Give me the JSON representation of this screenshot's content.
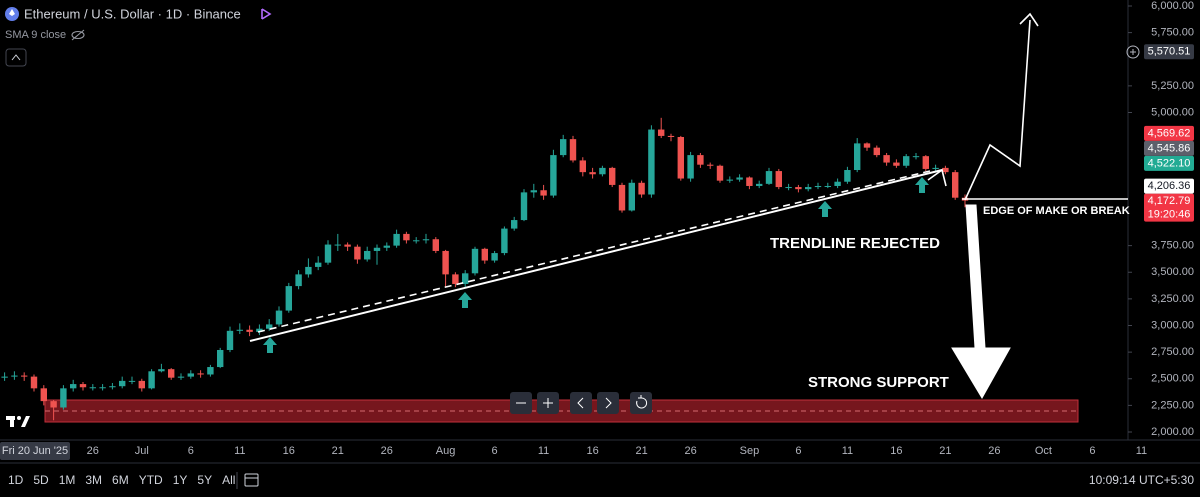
{
  "header": {
    "title": "Ethereum / U.S. Dollar · 1D · Binance",
    "indicator": "SMA 9 close"
  },
  "chart_data": {
    "type": "candlestick",
    "categories": [
      null,
      null,
      null,
      "Fri 20 Jun '25",
      null,
      null,
      null,
      null,
      null,
      "26",
      null,
      null,
      null,
      null,
      "Jul",
      null,
      null,
      null,
      null,
      "6",
      null,
      null,
      null,
      null,
      "11",
      null,
      null,
      null,
      null,
      "16",
      null,
      null,
      null,
      null,
      "21",
      null,
      null,
      null,
      null,
      "26",
      null,
      null,
      null,
      null,
      null,
      "Aug",
      null,
      null,
      null,
      null,
      "6",
      null,
      null,
      null,
      null,
      "11",
      null,
      null,
      null,
      null,
      "16",
      null,
      null,
      null,
      null,
      "21",
      null,
      null,
      null,
      null,
      "26",
      null,
      null,
      null,
      null,
      null,
      "Sep",
      null,
      null,
      null,
      null,
      "6",
      null,
      null,
      null,
      null,
      "11",
      null,
      null,
      null,
      null,
      "16",
      null,
      null,
      null,
      null,
      "21",
      null,
      null,
      null,
      null,
      "26",
      null,
      null,
      null,
      null,
      "Oct",
      null,
      null,
      null,
      null,
      "6",
      null,
      null,
      null,
      null,
      "11"
    ],
    "open": [
      2510,
      2520,
      2530,
      2520,
      2410,
      2290,
      2230,
      2410,
      2450,
      2420,
      2420,
      2420,
      2430,
      2480,
      2480,
      2410,
      2570,
      2590,
      2510,
      2520,
      2550,
      2540,
      2610,
      2770,
      2950,
      2960,
      2940,
      2970,
      3010,
      3140,
      3370,
      3480,
      3550,
      3590,
      3760,
      3760,
      3740,
      3620,
      3700,
      3730,
      3750,
      3860,
      3800,
      3800,
      3810,
      3700,
      3480,
      3390,
      3490,
      3720,
      3610,
      3680,
      3910,
      3990,
      4250,
      4270,
      4220,
      4600,
      4750,
      4550,
      4440,
      4420,
      4480,
      4320,
      4080,
      4340,
      4230,
      4840,
      4780,
      4770,
      4380,
      4600,
      4510,
      4500,
      4360,
      4370,
      4390,
      4310,
      4330,
      4450,
      4300,
      4300,
      4280,
      4300,
      4310,
      4310,
      4350,
      4460,
      4710,
      4670,
      4600,
      4530,
      4500,
      4590,
      4590,
      4470,
      4480,
      4440,
      4200,
      null,
      null,
      null,
      null,
      null,
      null,
      null,
      null,
      null,
      null,
      null,
      null,
      null,
      null,
      null,
      null,
      null,
      null
    ],
    "high": [
      2560,
      2570,
      2560,
      2540,
      2440,
      2300,
      2440,
      2490,
      2470,
      2450,
      2450,
      2460,
      2520,
      2520,
      2500,
      2590,
      2640,
      2600,
      2550,
      2580,
      2580,
      2630,
      2790,
      2990,
      3020,
      3000,
      3010,
      3060,
      3180,
      3400,
      3520,
      3630,
      3650,
      3800,
      3860,
      3780,
      3760,
      3740,
      3760,
      3780,
      3900,
      3880,
      3830,
      3860,
      3830,
      3710,
      3500,
      3520,
      3740,
      3730,
      3700,
      3930,
      4020,
      4280,
      4330,
      4320,
      4650,
      4790,
      4780,
      4580,
      4480,
      4500,
      4490,
      4340,
      4370,
      4360,
      4880,
      4950,
      4800,
      4780,
      4630,
      4620,
      4530,
      4510,
      4400,
      4420,
      4400,
      4360,
      4480,
      4470,
      4330,
      4320,
      4330,
      4340,
      4340,
      4380,
      4490,
      4760,
      4720,
      4690,
      4620,
      4560,
      4610,
      4620,
      4600,
      4510,
      4500,
      4460,
      4230,
      null,
      null,
      null,
      null,
      null,
      null,
      null,
      null,
      null,
      null,
      null,
      null,
      null,
      null,
      null,
      null,
      null,
      null
    ],
    "low": [
      2480,
      2490,
      2480,
      2380,
      2250,
      2110,
      2210,
      2380,
      2390,
      2390,
      2390,
      2400,
      2410,
      2450,
      2380,
      2400,
      2560,
      2490,
      2490,
      2500,
      2510,
      2520,
      2600,
      2750,
      2920,
      2900,
      2910,
      2950,
      2990,
      3120,
      3340,
      3450,
      3520,
      3570,
      3700,
      3700,
      3580,
      3600,
      3570,
      3700,
      3730,
      3770,
      3770,
      3770,
      3680,
      3360,
      3360,
      3350,
      3470,
      3580,
      3590,
      3660,
      3890,
      3980,
      4200,
      4180,
      4200,
      4580,
      4530,
      4400,
      4380,
      4400,
      4300,
      4060,
      4070,
      4200,
      4200,
      4760,
      4730,
      4360,
      4350,
      4480,
      4470,
      4340,
      4340,
      4350,
      4280,
      4290,
      4320,
      4280,
      4270,
      4250,
      4260,
      4280,
      4290,
      4290,
      4330,
      4440,
      4640,
      4580,
      4500,
      4480,
      4480,
      4560,
      4450,
      4440,
      4420,
      4180,
      4110,
      null,
      null,
      null,
      null,
      null,
      null,
      null,
      null,
      null,
      null,
      null,
      null,
      null,
      null,
      null,
      null,
      null,
      null
    ],
    "close": [
      2520,
      2530,
      2520,
      2410,
      2290,
      2230,
      2410,
      2450,
      2420,
      2420,
      2420,
      2430,
      2480,
      2480,
      2410,
      2570,
      2590,
      2510,
      2520,
      2550,
      2540,
      2610,
      2770,
      2950,
      2960,
      2940,
      2970,
      3010,
      3140,
      3370,
      3480,
      3550,
      3590,
      3760,
      3760,
      3740,
      3620,
      3700,
      3730,
      3750,
      3860,
      3800,
      3800,
      3810,
      3700,
      3480,
      3390,
      3490,
      3720,
      3610,
      3680,
      3910,
      3990,
      4250,
      4270,
      4220,
      4600,
      4750,
      4550,
      4440,
      4420,
      4480,
      4320,
      4080,
      4340,
      4230,
      4840,
      4780,
      4770,
      4380,
      4600,
      4510,
      4500,
      4360,
      4370,
      4390,
      4310,
      4330,
      4450,
      4300,
      4300,
      4280,
      4300,
      4310,
      4310,
      4350,
      4460,
      4710,
      4670,
      4600,
      4530,
      4500,
      4590,
      4590,
      4470,
      4480,
      4440,
      4200,
      4172.79,
      null,
      null,
      null,
      null,
      null,
      null,
      null,
      null,
      null,
      null,
      null,
      null,
      null,
      null,
      null,
      null,
      null,
      null
    ],
    "up_color": "#26a69a",
    "down_color": "#ef5350",
    "ylim": [
      2000,
      6000
    ],
    "yticks": [
      {
        "value": 2000,
        "label": "2,000.00"
      },
      {
        "value": 2250,
        "label": "2,250.00"
      },
      {
        "value": 2500,
        "label": "2,500.00"
      },
      {
        "value": 2750,
        "label": "2,750.00"
      },
      {
        "value": 3000,
        "label": "3,000.00"
      },
      {
        "value": 3250,
        "label": "3,250.00"
      },
      {
        "value": 3500,
        "label": "3,500.00"
      },
      {
        "value": 3750,
        "label": "3,750.00"
      },
      {
        "value": 5000,
        "label": "5,000.00"
      },
      {
        "value": 5250,
        "label": "5,250.00"
      },
      {
        "value": 5750,
        "label": "5,750.00"
      },
      {
        "value": 6000,
        "label": "6,000.00"
      }
    ],
    "price_labels": [
      {
        "value": 5570.51,
        "label": "5,570.51",
        "color": "#363a45"
      },
      {
        "value": 4522.1,
        "label": "4,522.10",
        "color": "#22ab94"
      },
      {
        "value": 4545.86,
        "label": "4,545.86",
        "color": "#5d606b"
      },
      {
        "value": 4569.62,
        "label": "4,569.62",
        "color": "#f23645"
      },
      {
        "value": 4172.79,
        "label": "4,172.79",
        "color": "#f23645"
      },
      {
        "value": 4206.36,
        "label": "4,206.36",
        "color": "#ffffff"
      }
    ],
    "countdown": "19:20:46",
    "annotations": [
      "TRENDLINE REJECTED",
      "EDGE OF MAKE OR BREAK",
      "STRONG SUPPORT"
    ]
  },
  "toolbar": {
    "ranges": [
      "1D",
      "5D",
      "1M",
      "3M",
      "6M",
      "YTD",
      "1Y",
      "5Y",
      "All"
    ],
    "clock": "10:09:14 UTC+5:30"
  }
}
